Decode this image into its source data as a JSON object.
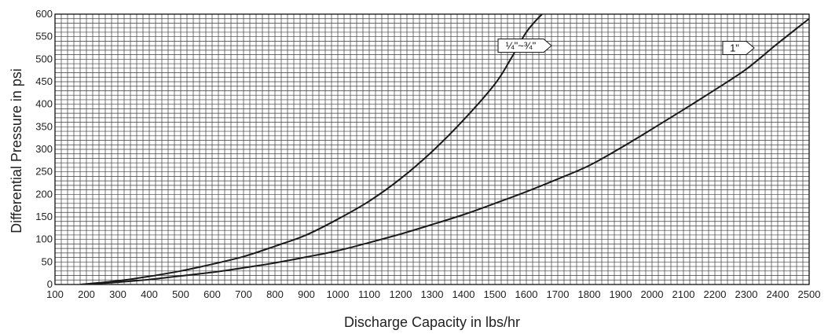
{
  "chart_data": {
    "type": "line",
    "title": "",
    "xlabel": "Discharge Capacity in lbs/hr",
    "ylabel": "Differential Pressure in psi",
    "xlim": [
      100,
      2500
    ],
    "ylim": [
      0,
      600
    ],
    "x_ticks": [
      "100",
      "200",
      "300",
      "400",
      "500",
      "600",
      "700",
      "800",
      "900",
      "1000",
      "1100",
      "1200",
      "1300",
      "1400",
      "1500",
      "1600",
      "1700",
      "1800",
      "1900",
      "2000",
      "2100",
      "2200",
      "2300",
      "2400",
      "2500"
    ],
    "y_ticks": [
      "0",
      "50",
      "100",
      "150",
      "200",
      "250",
      "300",
      "350",
      "400",
      "450",
      "500",
      "550",
      "600"
    ],
    "grid": true,
    "grid_minor_x_step": 20,
    "grid_minor_y_step": 10,
    "series": [
      {
        "name": "¼\"~¾\"",
        "x": [
          180,
          300,
          400,
          500,
          600,
          700,
          800,
          900,
          1000,
          1100,
          1200,
          1300,
          1400,
          1500,
          1550,
          1600,
          1650,
          1665
        ],
        "y": [
          0,
          8,
          18,
          30,
          45,
          62,
          85,
          110,
          145,
          185,
          235,
          295,
          365,
          445,
          500,
          560,
          600,
          605
        ]
      },
      {
        "name": "1\"",
        "x": [
          180,
          300,
          400,
          500,
          600,
          700,
          800,
          900,
          1000,
          1100,
          1200,
          1300,
          1400,
          1500,
          1600,
          1700,
          1800,
          1900,
          2000,
          2100,
          2200,
          2300,
          2400,
          2500
        ],
        "y": [
          0,
          5,
          11,
          19,
          27,
          37,
          48,
          61,
          75,
          93,
          112,
          133,
          155,
          180,
          206,
          234,
          264,
          303,
          345,
          388,
          432,
          478,
          535,
          590
        ]
      }
    ]
  }
}
